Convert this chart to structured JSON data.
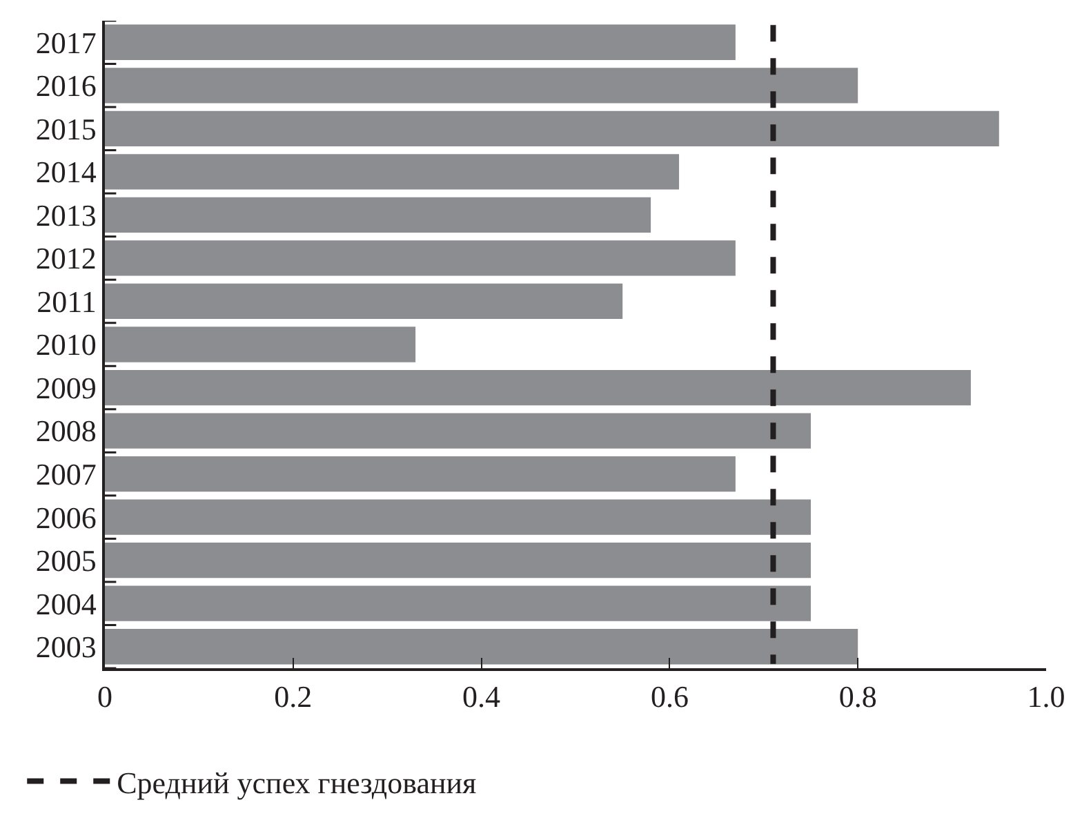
{
  "chart_data": {
    "type": "bar",
    "orientation": "horizontal",
    "categories": [
      "2017",
      "2016",
      "2015",
      "2014",
      "2013",
      "2012",
      "2011",
      "2010",
      "2009",
      "2008",
      "2007",
      "2006",
      "2005",
      "2004",
      "2003"
    ],
    "values": [
      0.67,
      0.8,
      0.95,
      0.61,
      0.58,
      0.67,
      0.55,
      0.33,
      0.92,
      0.75,
      0.67,
      0.75,
      0.75,
      0.75,
      0.8
    ],
    "color": "#8c8d91",
    "xlim": [
      0,
      1
    ],
    "xticks": [
      0,
      0.2,
      0.4,
      0.6,
      0.8,
      {
        "value": 1,
        "label": "1.0"
      }
    ],
    "ref_lines": [
      {
        "axis": "x",
        "value": 0.71,
        "label": "Средний успех гнездования",
        "color": "#231f20",
        "line_style": "dashed"
      }
    ],
    "legend": "bottom left"
  }
}
